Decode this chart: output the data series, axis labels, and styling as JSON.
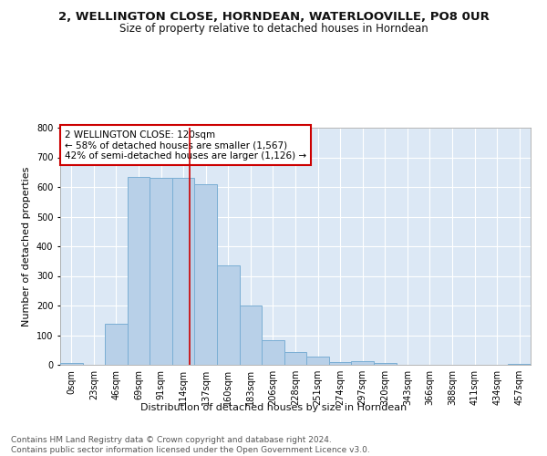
{
  "title1": "2, WELLINGTON CLOSE, HORNDEAN, WATERLOOVILLE, PO8 0UR",
  "title2": "Size of property relative to detached houses in Horndean",
  "xlabel": "Distribution of detached houses by size in Horndean",
  "ylabel": "Number of detached properties",
  "bar_color": "#b8d0e8",
  "bar_edge_color": "#7aaed4",
  "background_color": "#dce8f5",
  "grid_color": "#ffffff",
  "categories": [
    "0sqm",
    "23sqm",
    "46sqm",
    "69sqm",
    "91sqm",
    "114sqm",
    "137sqm",
    "160sqm",
    "183sqm",
    "206sqm",
    "228sqm",
    "251sqm",
    "274sqm",
    "297sqm",
    "320sqm",
    "343sqm",
    "366sqm",
    "388sqm",
    "411sqm",
    "434sqm",
    "457sqm"
  ],
  "values": [
    5,
    0,
    140,
    635,
    630,
    630,
    610,
    335,
    200,
    82,
    44,
    27,
    10,
    11,
    6,
    0,
    0,
    0,
    0,
    0,
    4
  ],
  "vline_color": "#cc0000",
  "annotation_text": "2 WELLINGTON CLOSE: 120sqm\n← 58% of detached houses are smaller (1,567)\n42% of semi-detached houses are larger (1,126) →",
  "annotation_box_color": "#ffffff",
  "annotation_box_edge_color": "#cc0000",
  "ylim": [
    0,
    800
  ],
  "yticks": [
    0,
    100,
    200,
    300,
    400,
    500,
    600,
    700,
    800
  ],
  "footer_text": "Contains HM Land Registry data © Crown copyright and database right 2024.\nContains public sector information licensed under the Open Government Licence v3.0.",
  "title1_fontsize": 9.5,
  "title2_fontsize": 8.5,
  "tick_fontsize": 7,
  "ylabel_fontsize": 8,
  "xlabel_fontsize": 8,
  "annotation_fontsize": 7.5,
  "footer_fontsize": 6.5
}
